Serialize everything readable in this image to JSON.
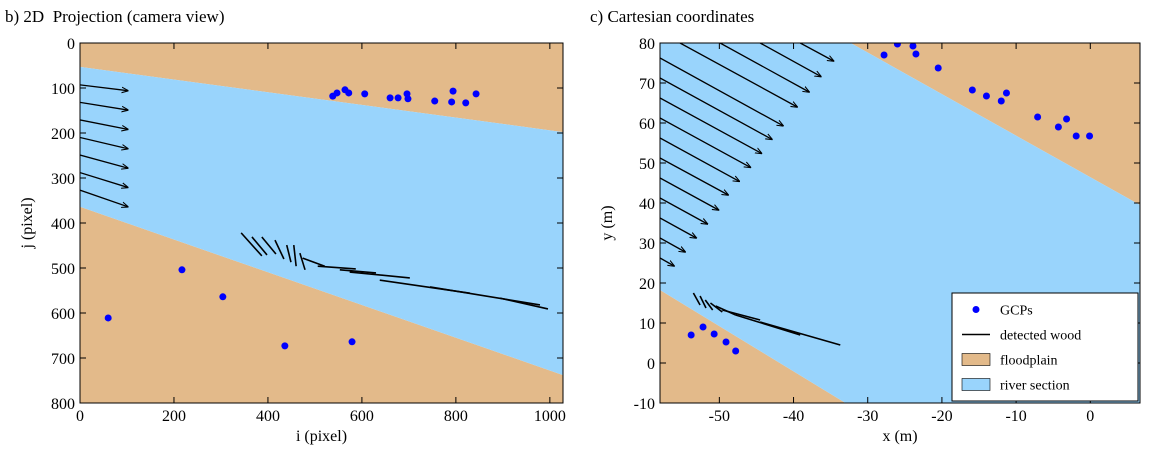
{
  "chart_data": [
    {
      "type": "scatter",
      "title": "b) 2D  Projection (camera view)",
      "x_label": "i (pixel)",
      "y_label": "j (pixel)",
      "xlim": [
        0,
        1028
      ],
      "ylim": [
        800,
        0
      ],
      "xticks": [
        0,
        200,
        400,
        600,
        800,
        1000
      ],
      "yticks": [
        0,
        100,
        200,
        300,
        400,
        500,
        600,
        700,
        800
      ],
      "regions": [
        {
          "color": "#e3ba8a",
          "polygons": [
            {
              "x": [
                0,
                1028,
                1028,
                0
              ],
              "y": [
                0,
                0,
                198,
                53
              ]
            },
            {
              "x": [
                0,
                1028,
                1028,
                0
              ],
              "y": [
                364,
                738,
                800,
                800
              ]
            }
          ]
        },
        {
          "color": "#99d4fc",
          "polygons": [
            {
              "x": [
                0,
                1028,
                1028,
                0
              ],
              "y": [
                53,
                198,
                738,
                364
              ]
            }
          ]
        }
      ],
      "arrows": {
        "color": "#000000",
        "x_start": [
          0,
          0,
          0,
          0,
          0,
          0,
          0
        ],
        "y_start": [
          93,
          132,
          171,
          210,
          249,
          288,
          327
        ],
        "x_end": [
          102,
          102,
          102,
          102,
          102,
          102,
          102
        ],
        "y_end": [
          106,
          149,
          192,
          235,
          278,
          321,
          364
        ]
      },
      "segments": {
        "color": "#000000",
        "x_start": [
          343,
          366,
          387,
          415,
          440,
          455,
          468,
          474,
          506,
          553,
          574,
          638,
          745,
          894
        ],
        "y_start": [
          422,
          431,
          431,
          438,
          449,
          449,
          467,
          478,
          496,
          504,
          509,
          527,
          542,
          567
        ],
        "x_end": [
          387,
          398,
          417,
          434,
          449,
          460,
          479,
          521,
          587,
          630,
          702,
          830,
          979,
          996
        ],
        "y_end": [
          473,
          471,
          469,
          480,
          487,
          496,
          504,
          496,
          502,
          511,
          522,
          556,
          582,
          591
        ]
      },
      "points": {
        "color": "#0000ff",
        "x": [
          60,
          217,
          304,
          436,
          579,
          538,
          547,
          564,
          572,
          606,
          660,
          677,
          696,
          698,
          755,
          791,
          794,
          821,
          843
        ],
        "y": [
          611,
          504,
          564,
          673,
          664,
          118,
          111,
          104,
          111,
          113,
          122,
          122,
          113,
          124,
          129,
          131,
          107,
          133,
          113
        ]
      }
    },
    {
      "type": "scatter",
      "title": "c) Cartesian coordinates",
      "x_label": "x (m)",
      "y_label": "y (m)",
      "xlim": [
        -58,
        6.7
      ],
      "ylim": [
        -10,
        80
      ],
      "xticks": [
        -50,
        -40,
        -30,
        -20,
        -10,
        0
      ],
      "yticks": [
        -10,
        0,
        10,
        20,
        30,
        40,
        50,
        60,
        70,
        80
      ],
      "legend": "lower right",
      "regions": [
        {
          "name": "floodplain",
          "color": "#e3ba8a",
          "polygons": [
            {
              "x": [
                -32.3,
                6.7,
                6.7
              ],
              "y": [
                80,
                80,
                39.5
              ]
            },
            {
              "x": [
                -58,
                -33,
                -58
              ],
              "y": [
                18.25,
                -10,
                -10
              ]
            }
          ]
        },
        {
          "name": "river section",
          "color": "#99d4fc",
          "polygons": [
            {
              "x": [
                -58,
                -32.3,
                6.7,
                6.7,
                -33,
                -58
              ],
              "y": [
                80,
                80,
                39.5,
                -10,
                -10,
                18.25
              ]
            }
          ]
        }
      ],
      "arrows": {
        "color": "#000000",
        "x_start": [
          -58,
          -58,
          -58,
          -58,
          -58,
          -58,
          -58,
          -58,
          -58,
          -58,
          -58,
          -55.3,
          -49.9,
          -44.5,
          -39.1
        ],
        "y_start": [
          26.25,
          31.25,
          36.25,
          41.25,
          46.25,
          51.25,
          56.25,
          61.25,
          66.25,
          71.25,
          76.25,
          80,
          80,
          80,
          80
        ],
        "x_end": [
          -56.1,
          -54.6,
          -53.1,
          -51.6,
          -50.1,
          -48.8,
          -47.3,
          -45.8,
          -44.3,
          -42.9,
          -41.4,
          -39.5,
          -37.9,
          -36.3,
          -34.6
        ],
        "y_end": [
          24.25,
          27.75,
          31.25,
          34.75,
          38.25,
          42,
          45.4,
          48.9,
          52.4,
          55.9,
          59.3,
          64,
          67.75,
          71.6,
          75.5
        ]
      },
      "segments": {
        "name": "detected wood",
        "color": "#000000",
        "x_start": [
          -53.5,
          -52.6,
          -51.9,
          -51.2,
          -50.5,
          -49.6,
          -47.8,
          -44.5
        ],
        "y_start": [
          17.5,
          16.75,
          15.75,
          15,
          14.25,
          13.25,
          12,
          10.25
        ],
        "x_end": [
          -52.6,
          -51.8,
          -50.9,
          -49.6,
          -47.8,
          -44.5,
          -39.1,
          -33.7
        ],
        "y_end": [
          14.5,
          13.75,
          13.25,
          12.75,
          12,
          10.75,
          7,
          4.5
        ]
      },
      "points": {
        "name": "GCPs",
        "color": "#0000ff",
        "x": [
          -27.8,
          -26.0,
          -23.9,
          -23.5,
          -20.5,
          -15.9,
          -14.0,
          -12.0,
          -11.3,
          -7.1,
          -4.3,
          -3.2,
          -1.9,
          -0.1,
          -53.8,
          -52.2,
          -50.7,
          -49.1,
          -47.8
        ],
        "y": [
          77,
          79.75,
          79.25,
          77.25,
          73.75,
          68.25,
          66.75,
          65.5,
          67.5,
          61.5,
          59,
          61,
          56.75,
          56.75,
          7,
          9,
          7.25,
          5.25,
          3
        ]
      }
    }
  ]
}
